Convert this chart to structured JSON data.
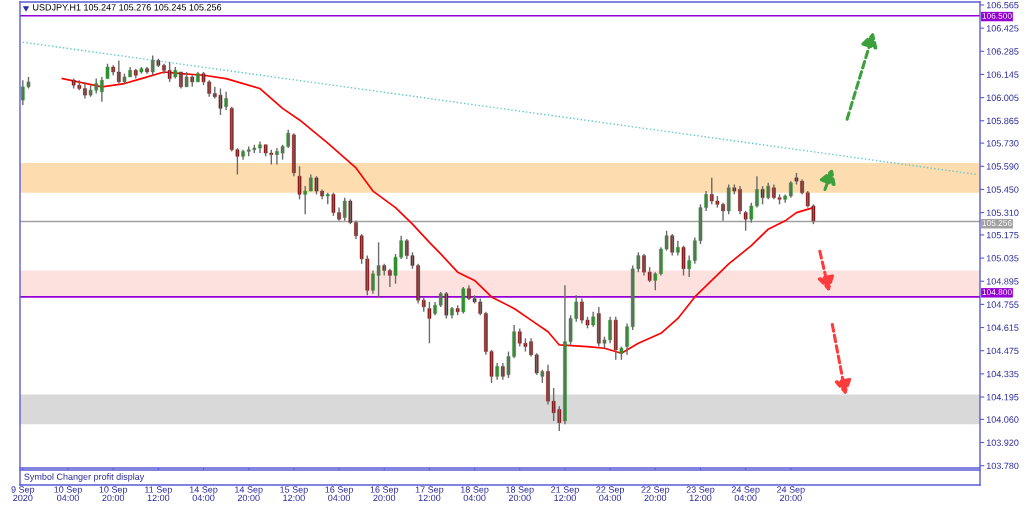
{
  "chart_data": {
    "type": "candlestick",
    "title": "USDJPY.H1 105.247 105.276 105.245 105.256",
    "categories": [
      "9 Sep 2020",
      null,
      null,
      null,
      null,
      null,
      null,
      null,
      "10 Sep 04:00",
      null,
      null,
      null,
      null,
      null,
      null,
      null,
      "10 Sep 20:00",
      null,
      null,
      null,
      null,
      null,
      null,
      null,
      "11 Sep 12:00",
      null,
      null,
      null,
      null,
      null,
      null,
      null,
      "14 Sep 04:00",
      null,
      null,
      null,
      null,
      null,
      null,
      null,
      "14 Sep 20:00",
      null,
      null,
      null,
      null,
      null,
      null,
      null,
      "15 Sep 12:00",
      null,
      null,
      null,
      null,
      null,
      null,
      null,
      "16 Sep 04:00",
      null,
      null,
      null,
      null,
      null,
      null,
      null,
      "16 Sep 20:00",
      null,
      null,
      null,
      null,
      null,
      null,
      null,
      "17 Sep 12:00",
      null,
      null,
      null,
      null,
      null,
      null,
      null,
      "18 Sep 04:00",
      null,
      null,
      null,
      null,
      null,
      null,
      null,
      "18 Sep 20:00",
      null,
      null,
      null,
      null,
      null,
      null,
      null,
      "21 Sep 12:00",
      null,
      null,
      null,
      null,
      null,
      null,
      null,
      "22 Sep 04:00",
      null,
      null,
      null,
      null,
      null,
      null,
      null,
      "22 Sep 20:00",
      null,
      null,
      null,
      null,
      null,
      null,
      null,
      "23 Sep 12:00",
      null,
      null,
      null,
      null,
      null,
      null,
      null,
      "24 Sep 04:00",
      null,
      null,
      null,
      null,
      null,
      null,
      null,
      "24 Sep 20:00",
      null,
      null,
      null,
      null,
      null,
      null,
      null,
      null,
      null,
      null,
      null,
      null,
      null,
      null,
      null,
      null,
      null,
      null,
      null,
      null,
      null,
      null,
      null,
      null,
      null,
      null,
      null,
      null,
      null,
      null,
      null,
      null,
      null
    ],
    "ohlc": [
      [
        105.99,
        106.11,
        105.96,
        106.07
      ],
      [
        106.07,
        106.13,
        106.06,
        106.1
      ],
      null,
      null,
      null,
      null,
      null,
      null,
      null,
      [
        106.11,
        106.12,
        106.06,
        106.08
      ],
      [
        106.08,
        106.11,
        106.05,
        106.06
      ],
      [
        106.06,
        106.1,
        106.0,
        106.02
      ],
      [
        106.02,
        106.08,
        106.01,
        106.05
      ],
      [
        106.05,
        106.12,
        106.03,
        106.09
      ],
      [
        106.04,
        106.13,
        105.98,
        106.11
      ],
      [
        106.12,
        106.21,
        106.12,
        106.19
      ],
      [
        106.19,
        106.2,
        106.14,
        106.16
      ],
      [
        106.16,
        106.23,
        106.09,
        106.1
      ],
      [
        106.1,
        106.15,
        106.09,
        106.13
      ],
      [
        106.13,
        106.19,
        106.13,
        106.17
      ],
      [
        106.17,
        106.18,
        106.12,
        106.14
      ],
      [
        106.16,
        106.19,
        106.15,
        106.18
      ],
      [
        106.18,
        106.19,
        106.15,
        106.16
      ],
      [
        106.16,
        106.26,
        106.14,
        106.23
      ],
      [
        106.23,
        106.24,
        106.19,
        106.2
      ],
      [
        106.2,
        106.21,
        106.15,
        106.17
      ],
      [
        106.17,
        106.22,
        106.1,
        106.12
      ],
      [
        106.13,
        106.19,
        106.12,
        106.17
      ],
      [
        106.16,
        106.16,
        106.06,
        106.07
      ],
      [
        106.07,
        106.16,
        106.07,
        106.13
      ],
      [
        106.13,
        106.14,
        106.07,
        106.1
      ],
      [
        106.1,
        106.16,
        106.1,
        106.15
      ],
      [
        106.15,
        106.16,
        106.08,
        106.1
      ],
      [
        106.1,
        106.11,
        106.01,
        106.03
      ],
      [
        106.03,
        106.07,
        106.0,
        106.01
      ],
      [
        106.02,
        106.06,
        105.9,
        105.94
      ],
      [
        105.95,
        106.04,
        105.93,
        106.0
      ],
      [
        105.94,
        105.95,
        105.68,
        105.69
      ],
      [
        105.69,
        105.7,
        105.54,
        105.65
      ],
      [
        105.65,
        105.69,
        105.63,
        105.68
      ],
      [
        105.68,
        105.71,
        105.65,
        105.69
      ],
      [
        105.69,
        105.72,
        105.67,
        105.7
      ],
      [
        105.7,
        105.74,
        105.67,
        105.72
      ],
      [
        105.72,
        105.72,
        105.65,
        105.67
      ],
      [
        105.67,
        105.69,
        105.6,
        105.66
      ],
      [
        105.66,
        105.7,
        105.6,
        105.68
      ],
      [
        105.67,
        105.72,
        105.63,
        105.71
      ],
      [
        105.71,
        105.81,
        105.7,
        105.79
      ],
      [
        105.78,
        105.79,
        105.53,
        105.55
      ],
      [
        105.53,
        105.59,
        105.39,
        105.42
      ],
      [
        105.42,
        105.47,
        105.3,
        105.44
      ],
      [
        105.44,
        105.54,
        105.44,
        105.52
      ],
      [
        105.52,
        105.53,
        105.42,
        105.44
      ],
      [
        105.44,
        105.45,
        105.39,
        105.41
      ],
      [
        105.41,
        105.43,
        105.36,
        105.42
      ],
      [
        105.42,
        105.43,
        105.29,
        105.31
      ],
      [
        105.31,
        105.34,
        105.26,
        105.27
      ],
      [
        105.28,
        105.4,
        105.26,
        105.38
      ],
      [
        105.38,
        105.39,
        105.24,
        105.25
      ],
      [
        105.25,
        105.26,
        105.15,
        105.17
      ],
      [
        105.17,
        105.18,
        105.0,
        105.03
      ],
      [
        105.03,
        105.05,
        104.81,
        104.84
      ],
      [
        104.84,
        104.96,
        104.82,
        104.94
      ],
      [
        104.93,
        105.13,
        104.8,
        104.99
      ],
      [
        104.99,
        105.0,
        104.93,
        104.96
      ],
      [
        104.96,
        104.97,
        104.86,
        104.93
      ],
      [
        104.93,
        105.06,
        104.88,
        105.04
      ],
      [
        105.04,
        105.17,
        105.03,
        105.14
      ],
      [
        105.14,
        105.15,
        105.03,
        105.05
      ],
      [
        105.05,
        105.07,
        104.97,
        104.99
      ],
      [
        104.99,
        105.0,
        104.76,
        104.78
      ],
      [
        104.78,
        104.8,
        104.71,
        104.74
      ],
      [
        104.73,
        104.77,
        104.52,
        104.67
      ],
      [
        104.7,
        104.77,
        104.69,
        104.75
      ],
      [
        104.75,
        104.83,
        104.74,
        104.82
      ],
      [
        104.82,
        104.83,
        104.67,
        104.69
      ],
      [
        104.69,
        104.74,
        104.67,
        104.73
      ],
      [
        104.73,
        104.75,
        104.69,
        104.71
      ],
      [
        104.71,
        104.86,
        104.7,
        104.85
      ],
      [
        104.85,
        104.87,
        104.78,
        104.79
      ],
      [
        104.79,
        104.81,
        104.76,
        104.77
      ],
      [
        104.77,
        104.79,
        104.69,
        104.7
      ],
      [
        104.7,
        104.71,
        104.45,
        104.47
      ],
      [
        104.47,
        104.48,
        104.28,
        104.32
      ],
      [
        104.32,
        104.4,
        104.3,
        104.38
      ],
      [
        104.38,
        104.4,
        104.3,
        104.32
      ],
      [
        104.33,
        104.47,
        104.31,
        104.44
      ],
      [
        104.44,
        104.63,
        104.43,
        104.59
      ],
      [
        104.59,
        104.61,
        104.5,
        104.52
      ],
      [
        104.52,
        104.55,
        104.47,
        104.5
      ],
      [
        104.53,
        104.55,
        104.44,
        104.45
      ],
      [
        104.45,
        104.46,
        104.33,
        104.34
      ],
      [
        104.32,
        104.36,
        104.28,
        104.35
      ],
      [
        104.35,
        104.39,
        104.15,
        104.17
      ],
      [
        104.17,
        104.25,
        104.05,
        104.1
      ],
      [
        104.12,
        104.14,
        103.99,
        104.04
      ],
      [
        104.05,
        104.87,
        104.03,
        104.53
      ],
      [
        104.53,
        104.69,
        104.51,
        104.67
      ],
      [
        104.67,
        104.81,
        104.65,
        104.77
      ],
      [
        104.77,
        104.79,
        104.64,
        104.66
      ],
      [
        104.66,
        104.68,
        104.61,
        104.63
      ],
      [
        104.63,
        104.71,
        104.62,
        104.68
      ],
      [
        104.7,
        104.74,
        104.5,
        104.52
      ],
      [
        104.52,
        104.56,
        104.49,
        104.54
      ],
      [
        104.54,
        104.68,
        104.52,
        104.66
      ],
      [
        104.66,
        104.68,
        104.42,
        104.48
      ],
      [
        104.46,
        104.5,
        104.42,
        104.49
      ],
      [
        104.5,
        104.64,
        104.45,
        104.62
      ],
      [
        104.62,
        104.99,
        104.6,
        104.97
      ],
      [
        104.97,
        105.07,
        104.95,
        105.05
      ],
      [
        105.05,
        105.06,
        104.93,
        104.95
      ],
      [
        104.95,
        104.98,
        104.89,
        104.9
      ],
      [
        104.9,
        104.95,
        104.84,
        104.94
      ],
      [
        104.94,
        105.1,
        104.93,
        105.09
      ],
      [
        105.09,
        105.2,
        105.08,
        105.17
      ],
      [
        105.17,
        105.18,
        105.05,
        105.07
      ],
      [
        105.07,
        105.14,
        105.05,
        105.1
      ],
      [
        105.1,
        105.11,
        104.93,
        104.97
      ],
      [
        104.97,
        105.05,
        104.92,
        105.02
      ],
      [
        105.02,
        105.16,
        105.0,
        105.14
      ],
      [
        105.14,
        105.36,
        105.12,
        105.34
      ],
      [
        105.34,
        105.44,
        105.32,
        105.42
      ],
      [
        105.42,
        105.52,
        105.36,
        105.38
      ],
      [
        105.38,
        105.41,
        105.34,
        105.36
      ],
      [
        105.36,
        105.37,
        105.26,
        105.32
      ],
      [
        105.32,
        105.48,
        105.3,
        105.46
      ],
      [
        105.46,
        105.48,
        105.42,
        105.44
      ],
      [
        105.45,
        105.47,
        105.3,
        105.32
      ],
      [
        105.31,
        105.32,
        105.2,
        105.27
      ],
      [
        105.27,
        105.37,
        105.25,
        105.35
      ],
      [
        105.35,
        105.53,
        105.34,
        105.45
      ],
      [
        105.45,
        105.47,
        105.36,
        105.4
      ],
      [
        105.4,
        105.49,
        105.39,
        105.47
      ],
      [
        105.46,
        105.48,
        105.39,
        105.4
      ],
      [
        105.4,
        105.42,
        105.36,
        105.39
      ],
      [
        105.39,
        105.42,
        105.37,
        105.41
      ],
      [
        105.41,
        105.5,
        105.4,
        105.49
      ],
      [
        105.52,
        105.55,
        105.48,
        105.5
      ],
      [
        105.5,
        105.51,
        105.42,
        105.43
      ],
      [
        105.43,
        105.44,
        105.34,
        105.35
      ],
      [
        105.35,
        105.36,
        105.24,
        105.26
      ],
      null,
      null,
      null,
      null,
      null,
      null,
      null,
      null,
      null,
      null,
      null,
      null,
      null,
      null,
      null,
      null,
      null,
      null,
      null,
      null,
      null,
      null,
      null,
      null,
      null,
      null,
      null,
      null,
      null
    ],
    "series": [
      {
        "type": "line",
        "color": "#ff0000",
        "line_style": "solid",
        "values": [
          null,
          null,
          null,
          null,
          null,
          null,
          null,
          106.12,
          null,
          null,
          null,
          null,
          null,
          null,
          106.07,
          null,
          null,
          null,
          106.09,
          null,
          null,
          106.12,
          null,
          null,
          null,
          106.16,
          null,
          null,
          106.15,
          null,
          null,
          null,
          106.14,
          null,
          null,
          null,
          106.12,
          null,
          null,
          null,
          null,
          null,
          106.06,
          null,
          null,
          null,
          105.94,
          null,
          null,
          105.87,
          null,
          null,
          null,
          null,
          105.73,
          null,
          null,
          null,
          null,
          105.58,
          null,
          null,
          105.44,
          null,
          null,
          null,
          105.34,
          null,
          null,
          105.24,
          null,
          null,
          105.13,
          null,
          105.06,
          null,
          null,
          104.95,
          null,
          null,
          104.9,
          null,
          null,
          104.8,
          null,
          null,
          null,
          104.73,
          null,
          null,
          104.66,
          null,
          null,
          104.59,
          null,
          104.51,
          null,
          null,
          null,
          null,
          104.5,
          null,
          null,
          104.49,
          null,
          null,
          104.46,
          null,
          null,
          104.52,
          null,
          null,
          null,
          104.58,
          null,
          null,
          104.67,
          null,
          null,
          104.8,
          null,
          null,
          104.9,
          null,
          null,
          105.0,
          null,
          null,
          null,
          105.11,
          null,
          null,
          105.21,
          null,
          null,
          105.26,
          null,
          105.31,
          null,
          null,
          105.34,
          null,
          null,
          null,
          null,
          null,
          null,
          null,
          null,
          null,
          null,
          null,
          null,
          null,
          null,
          null,
          null,
          null,
          null,
          null,
          null,
          null,
          null,
          null,
          null,
          null,
          null,
          null,
          null,
          null
        ]
      },
      {
        "type": "line",
        "color": "#5cc8c8",
        "line_style": "dotted",
        "values": [
          106.34,
          null,
          null,
          null,
          null,
          null,
          null,
          null,
          null,
          null,
          null,
          null,
          null,
          null,
          null,
          null,
          null,
          null,
          null,
          null,
          null,
          null,
          null,
          null,
          null,
          null,
          null,
          null,
          null,
          null,
          null,
          null,
          null,
          null,
          null,
          null,
          null,
          null,
          null,
          null,
          null,
          null,
          null,
          null,
          null,
          null,
          null,
          null,
          null,
          null,
          null,
          null,
          null,
          null,
          null,
          null,
          null,
          null,
          null,
          null,
          null,
          null,
          null,
          null,
          null,
          null,
          null,
          null,
          null,
          null,
          null,
          null,
          null,
          null,
          null,
          null,
          null,
          null,
          null,
          null,
          null,
          null,
          null,
          null,
          null,
          null,
          null,
          null,
          null,
          null,
          null,
          null,
          null,
          null,
          null,
          null,
          null,
          null,
          null,
          null,
          null,
          null,
          null,
          null,
          null,
          null,
          null,
          null,
          null,
          null,
          null,
          null,
          null,
          null,
          null,
          null,
          null,
          null,
          null,
          null,
          null,
          null,
          null,
          null,
          null,
          null,
          null,
          null,
          null,
          null,
          null,
          null,
          null,
          null,
          null,
          null,
          null,
          null,
          null,
          null,
          null,
          null,
          null,
          null,
          null,
          null,
          null,
          null,
          null,
          null,
          null,
          null,
          null,
          null,
          null,
          null,
          null,
          null,
          null,
          null,
          null,
          null,
          null,
          null,
          null,
          null,
          null,
          null,
          null,
          105.54
        ]
      }
    ],
    "ylim": [
      103.766,
      106.583
    ],
    "yticks": [
      106.565,
      106.425,
      106.285,
      106.145,
      106.005,
      105.865,
      {
        "value": 105.73,
        "label": "105.730"
      },
      {
        "value": 105.59,
        "label": "105.590"
      },
      {
        "value": 105.45,
        "label": "105.450"
      },
      {
        "value": 105.31,
        "label": "105.310"
      },
      105.175,
      105.035,
      104.895,
      104.755,
      104.615,
      104.475,
      104.335,
      104.195,
      {
        "value": 104.06,
        "label": "104.060"
      },
      {
        "value": 103.92,
        "label": "103.920"
      },
      {
        "value": 103.78,
        "label": "103.780"
      }
    ],
    "ref_lines": [
      {
        "axis": "y",
        "value": 106.5,
        "label": "106.500",
        "color": "#9400d3"
      },
      {
        "axis": "y",
        "value": 105.256,
        "label": "105.256",
        "color": "#a0a0a0"
      },
      {
        "axis": "y",
        "value": 104.8,
        "label": "104.800",
        "color": "#9400d3"
      }
    ],
    "bands": [
      {
        "axis": "y",
        "from": 105.43,
        "to": 105.61,
        "color": "#fddcb0"
      },
      {
        "axis": "y",
        "from": 104.8,
        "to": 104.96,
        "color": "#fde1de"
      },
      {
        "axis": "y",
        "from": 104.03,
        "to": 104.21,
        "color": "#d9d9d9"
      }
    ],
    "annotations": [
      "Symbol Changer profit display"
    ]
  }
}
